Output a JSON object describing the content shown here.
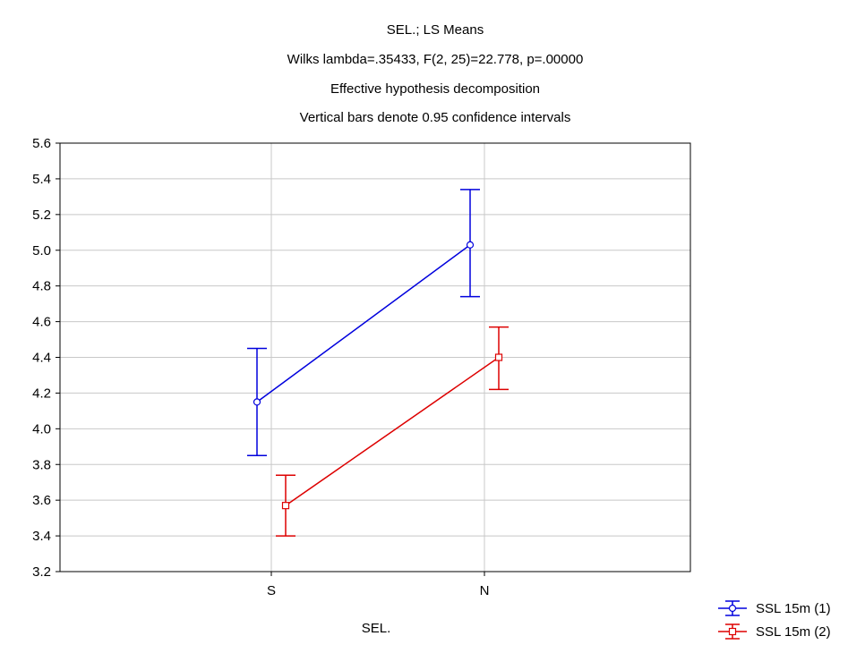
{
  "chart_data": {
    "type": "line",
    "title_lines": [
      "SEL.; LS Means",
      "Wilks lambda=.35433, F(2, 25)=22.778, p=.00000",
      "Effective hypothesis decomposition",
      "Vertical bars denote 0.95 confidence intervals"
    ],
    "xlabel": "SEL.",
    "ylabel": "",
    "categories": [
      "S",
      "N"
    ],
    "ylim": [
      3.2,
      5.6
    ],
    "yticks": [
      "3.2",
      "3.4",
      "3.6",
      "3.8",
      "4.0",
      "4.2",
      "4.4",
      "4.6",
      "4.8",
      "5.0",
      "5.2",
      "5.4",
      "5.6"
    ],
    "grid": true,
    "legend_position": "bottom-right",
    "series": [
      {
        "name": "SSL 15m (1)",
        "color": "#0000dd",
        "marker": "circle",
        "values": [
          4.15,
          5.03
        ],
        "ci_low": [
          3.85,
          4.74
        ],
        "ci_high": [
          4.45,
          5.34
        ]
      },
      {
        "name": "SSL 15m (2)",
        "color": "#dd0000",
        "marker": "square",
        "values": [
          3.57,
          4.4
        ],
        "ci_low": [
          3.4,
          4.22
        ],
        "ci_high": [
          3.74,
          4.57
        ]
      }
    ]
  }
}
